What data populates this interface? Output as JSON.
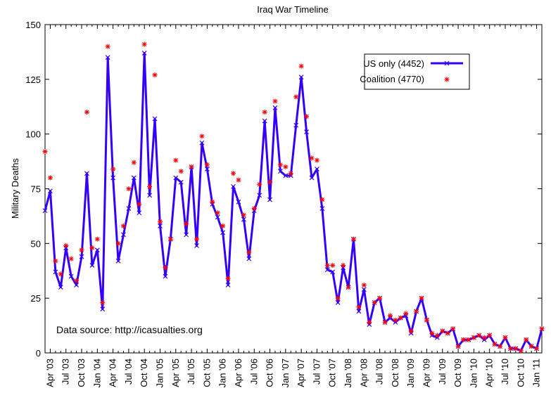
{
  "chart_data": {
    "type": "line",
    "title": "Iraq War Timeline",
    "xlabel": "",
    "ylabel": "Military Deaths",
    "ylim": [
      0,
      150
    ],
    "y_ticks": [
      0,
      25,
      50,
      75,
      100,
      125,
      150
    ],
    "grid": false,
    "legend_position": "top-right",
    "annotation": "Data source: http://icasualties.org",
    "colors": {
      "us": "#3300ff",
      "coalition": "#ff0000"
    },
    "start_month": "2003-03",
    "x_tick_labels": [
      "Apr '03",
      "Jul '03",
      "Oct '03",
      "Jan '04",
      "Apr '04",
      "Jul '04",
      "Oct '04",
      "Jan '05",
      "Apr '05",
      "Jul '05",
      "Oct '05",
      "Jan '06",
      "Apr '06",
      "Jul '06",
      "Oct '06",
      "Jan '07",
      "Apr '07",
      "Jul '07",
      "Oct '07",
      "Jan '08",
      "Apr '08",
      "Jul '08",
      "Oct '08",
      "Jan '09",
      "Apr '09",
      "Jul '09",
      "Oct '09",
      "Jan '10",
      "Apr '10",
      "Jul '10",
      "Oct '10",
      "Jan '11"
    ],
    "series": [
      {
        "name": "US only (4452)",
        "style": "line-x",
        "values": [
          65,
          74,
          37,
          30,
          48,
          35,
          31,
          44,
          82,
          40,
          47,
          20,
          135,
          80,
          42,
          54,
          66,
          80,
          64,
          137,
          72,
          107,
          58,
          35,
          52,
          80,
          78,
          54,
          85,
          49,
          96,
          84,
          68,
          62,
          55,
          31,
          76,
          69,
          61,
          43,
          65,
          72,
          106,
          70,
          112,
          83,
          81,
          81,
          104,
          126,
          101,
          80,
          84,
          66,
          38,
          37,
          23,
          39,
          30,
          52,
          19,
          29,
          13,
          23,
          25,
          14,
          16,
          14,
          16,
          17,
          9,
          19,
          25,
          15,
          8,
          7,
          10,
          9,
          11,
          3,
          6,
          6,
          7,
          8,
          6,
          8,
          4,
          3,
          7,
          2,
          2,
          1,
          6,
          3,
          2,
          11
        ]
      },
      {
        "name": "Coalition (4770)",
        "style": "star",
        "values": [
          92,
          80,
          42,
          36,
          49,
          43,
          33,
          47,
          110,
          48,
          52,
          23,
          140,
          84,
          50,
          58,
          75,
          87,
          68,
          141,
          76,
          127,
          60,
          39,
          52,
          88,
          83,
          59,
          85,
          52,
          99,
          86,
          69,
          64,
          58,
          34,
          82,
          79,
          63,
          46,
          66,
          77,
          110,
          78,
          115,
          86,
          85,
          82,
          117,
          131,
          108,
          89,
          88,
          70,
          40,
          40,
          25,
          40,
          30,
          52,
          21,
          31,
          14,
          23,
          25,
          14,
          17,
          15,
          16,
          18,
          10,
          19,
          25,
          15,
          9,
          8,
          10,
          9,
          11,
          3,
          6,
          6,
          7,
          8,
          7,
          8,
          4,
          3,
          7,
          2,
          2,
          1,
          6,
          3,
          2,
          11
        ]
      }
    ]
  }
}
